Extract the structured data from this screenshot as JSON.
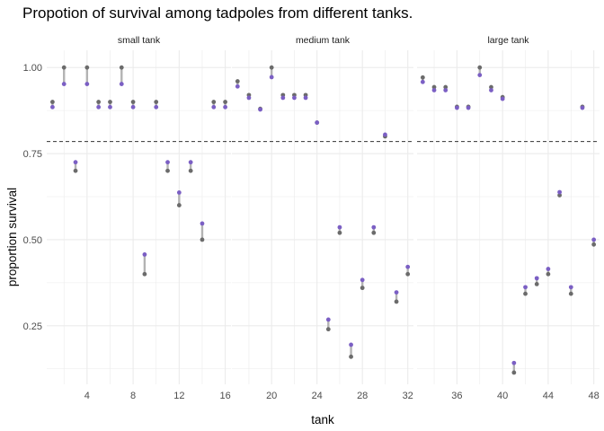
{
  "chart_data": {
    "type": "scatter",
    "title": "Propotion of survival among tadpoles from different tanks.",
    "xlabel": "tank",
    "ylabel": "proportion survival",
    "ylim": [
      0.08,
      1.05
    ],
    "yticks": [
      0.25,
      0.5,
      0.75,
      1.0
    ],
    "ytick_labels": [
      "0.25",
      "0.50",
      "0.75",
      "1.00"
    ],
    "reference_line": 0.785,
    "grid": true,
    "colors": {
      "raw": "#6b6b6b",
      "estimate": "#7b5fc4",
      "segment": "#b3b3b3",
      "reference": "#333333",
      "grid": "#ebebeb"
    },
    "panels": [
      {
        "label": "small tank",
        "xlim": [
          0.5,
          16.5
        ],
        "xticks": [
          4,
          8,
          12,
          16
        ],
        "xtick_labels": [
          "4",
          "8",
          "12",
          "16"
        ],
        "points": [
          {
            "tank": 1,
            "raw": 0.9,
            "estimate": 0.885
          },
          {
            "tank": 2,
            "raw": 1.0,
            "estimate": 0.952
          },
          {
            "tank": 3,
            "raw": 0.7,
            "estimate": 0.725
          },
          {
            "tank": 4,
            "raw": 1.0,
            "estimate": 0.952
          },
          {
            "tank": 5,
            "raw": 0.9,
            "estimate": 0.885
          },
          {
            "tank": 6,
            "raw": 0.9,
            "estimate": 0.885
          },
          {
            "tank": 7,
            "raw": 1.0,
            "estimate": 0.952
          },
          {
            "tank": 8,
            "raw": 0.9,
            "estimate": 0.885
          },
          {
            "tank": 9,
            "raw": 0.4,
            "estimate": 0.457
          },
          {
            "tank": 10,
            "raw": 0.9,
            "estimate": 0.885
          },
          {
            "tank": 11,
            "raw": 0.7,
            "estimate": 0.725
          },
          {
            "tank": 12,
            "raw": 0.6,
            "estimate": 0.637
          },
          {
            "tank": 13,
            "raw": 0.7,
            "estimate": 0.725
          },
          {
            "tank": 14,
            "raw": 0.5,
            "estimate": 0.547
          },
          {
            "tank": 15,
            "raw": 0.9,
            "estimate": 0.885
          },
          {
            "tank": 16,
            "raw": 0.9,
            "estimate": 0.885
          }
        ]
      },
      {
        "label": "medium tank",
        "xlim": [
          16.5,
          32.5
        ],
        "xticks": [
          20,
          24,
          28,
          32
        ],
        "xtick_labels": [
          "20",
          "24",
          "28",
          "32"
        ],
        "points": [
          {
            "tank": 17,
            "raw": 0.96,
            "estimate": 0.945
          },
          {
            "tank": 18,
            "raw": 0.92,
            "estimate": 0.912
          },
          {
            "tank": 19,
            "raw": 0.88,
            "estimate": 0.878
          },
          {
            "tank": 20,
            "raw": 1.0,
            "estimate": 0.972
          },
          {
            "tank": 21,
            "raw": 0.92,
            "estimate": 0.912
          },
          {
            "tank": 22,
            "raw": 0.92,
            "estimate": 0.912
          },
          {
            "tank": 23,
            "raw": 0.92,
            "estimate": 0.912
          },
          {
            "tank": 24,
            "raw": 0.84,
            "estimate": 0.84
          },
          {
            "tank": 25,
            "raw": 0.24,
            "estimate": 0.268
          },
          {
            "tank": 26,
            "raw": 0.52,
            "estimate": 0.536
          },
          {
            "tank": 27,
            "raw": 0.16,
            "estimate": 0.195
          },
          {
            "tank": 28,
            "raw": 0.36,
            "estimate": 0.383
          },
          {
            "tank": 29,
            "raw": 0.52,
            "estimate": 0.536
          },
          {
            "tank": 30,
            "raw": 0.8,
            "estimate": 0.805
          },
          {
            "tank": 31,
            "raw": 0.32,
            "estimate": 0.347
          },
          {
            "tank": 32,
            "raw": 0.4,
            "estimate": 0.421
          }
        ]
      },
      {
        "label": "large tank",
        "xlim": [
          32.5,
          48.5
        ],
        "xticks": [
          36,
          40,
          44,
          48
        ],
        "xtick_labels": [
          "36",
          "40",
          "44",
          "48"
        ],
        "points": [
          {
            "tank": 33,
            "raw": 0.971,
            "estimate": 0.958
          },
          {
            "tank": 34,
            "raw": 0.943,
            "estimate": 0.934
          },
          {
            "tank": 35,
            "raw": 0.943,
            "estimate": 0.934
          },
          {
            "tank": 36,
            "raw": 0.886,
            "estimate": 0.883
          },
          {
            "tank": 37,
            "raw": 0.886,
            "estimate": 0.883
          },
          {
            "tank": 38,
            "raw": 1.0,
            "estimate": 0.978
          },
          {
            "tank": 39,
            "raw": 0.943,
            "estimate": 0.934
          },
          {
            "tank": 40,
            "raw": 0.914,
            "estimate": 0.909
          },
          {
            "tank": 41,
            "raw": 0.114,
            "estimate": 0.142
          },
          {
            "tank": 42,
            "raw": 0.343,
            "estimate": 0.362
          },
          {
            "tank": 43,
            "raw": 0.371,
            "estimate": 0.388
          },
          {
            "tank": 44,
            "raw": 0.4,
            "estimate": 0.415
          },
          {
            "tank": 45,
            "raw": 0.629,
            "estimate": 0.638
          },
          {
            "tank": 46,
            "raw": 0.343,
            "estimate": 0.362
          },
          {
            "tank": 47,
            "raw": 0.886,
            "estimate": 0.883
          },
          {
            "tank": 48,
            "raw": 0.486,
            "estimate": 0.5
          }
        ]
      }
    ]
  }
}
